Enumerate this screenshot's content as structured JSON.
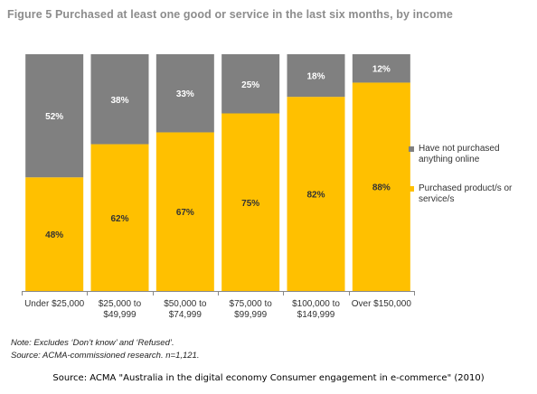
{
  "title": "Figure 5 Purchased at least one good or service in the last six months, by income",
  "chart_data": {
    "type": "bar",
    "stacked": true,
    "percent_stacked": true,
    "categories": [
      [
        "Under $25,000"
      ],
      [
        "$25,000 to",
        "$49,999"
      ],
      [
        "$50,000 to",
        "$74,999"
      ],
      [
        "$75,000 to",
        "$99,999"
      ],
      [
        "$100,000 to",
        "$149,999"
      ],
      [
        "Over $150,000"
      ]
    ],
    "series": [
      {
        "name": "Purchased product/s or service/s",
        "name_lines": [
          "Purchased product/s or",
          "service/s"
        ],
        "color": "#ffc000",
        "values": [
          48,
          62,
          67,
          75,
          82,
          88
        ],
        "labels": [
          "48%",
          "62%",
          "67%",
          "75%",
          "82%",
          "88%"
        ]
      },
      {
        "name": "Have not purchased anything online",
        "name_lines": [
          "Have not purchased",
          "anything online"
        ],
        "color": "#808080",
        "values": [
          52,
          38,
          33,
          25,
          18,
          12
        ],
        "labels": [
          "52%",
          "38%",
          "33%",
          "25%",
          "18%",
          "12%"
        ]
      }
    ],
    "ylim": [
      0,
      100
    ],
    "grid": false,
    "legend_position": "right"
  },
  "notes": [
    "Note: Excludes ‘Don’t know’ and ‘Refused’.",
    "Source: ACMA-commissioned research. n=1,121."
  ],
  "source": "Source: ACMA \"Australia in the digital economy Consumer engagement in e-commerce\" (2010)"
}
